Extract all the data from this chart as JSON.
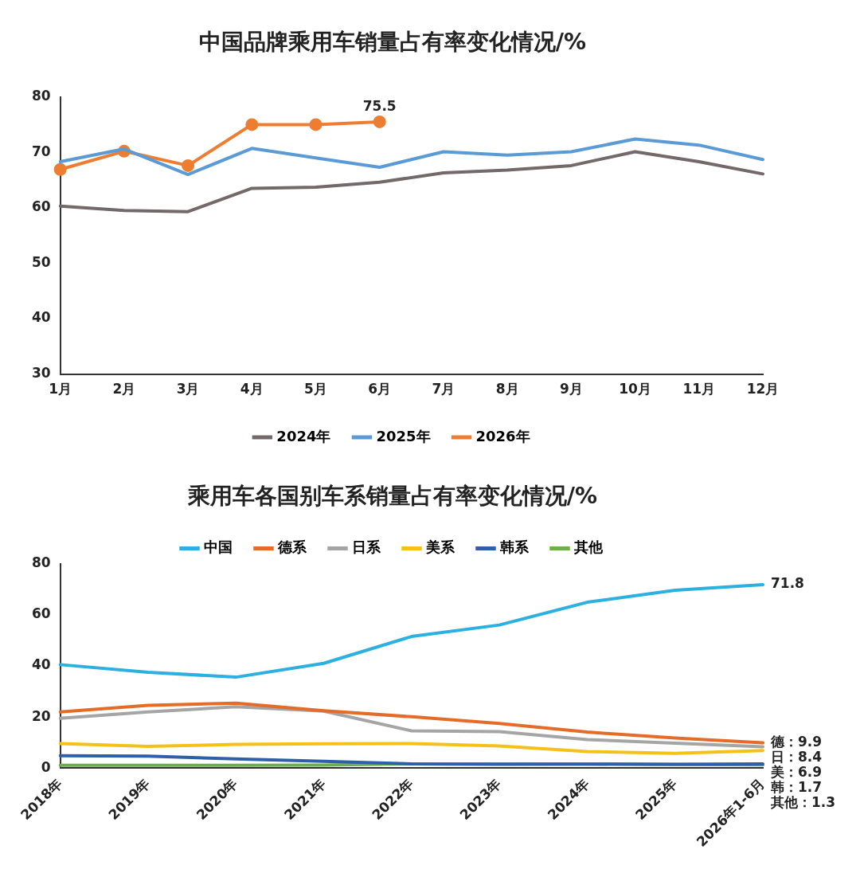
{
  "chart_data": [
    {
      "type": "line",
      "title": "中国品牌乘用车销量占有率变化情况/%",
      "categories": [
        "1月",
        "2月",
        "3月",
        "4月",
        "5月",
        "6月",
        "7月",
        "8月",
        "9月",
        "10月",
        "11月",
        "12月"
      ],
      "ylim": [
        30,
        80
      ],
      "yticks": [
        30,
        40,
        50,
        60,
        70,
        80
      ],
      "legend": "bottom",
      "marker": "none",
      "series": [
        {
          "name": "2024年",
          "color": "#73686a",
          "values": [
            60.3,
            59.5,
            59.3,
            63.5,
            63.7,
            64.6,
            66.3,
            66.8,
            67.6,
            70.1,
            68.3,
            66.1
          ]
        },
        {
          "name": "2025年",
          "color": "#5b9bd5",
          "values": [
            68.3,
            70.6,
            66.0,
            70.7,
            69.0,
            67.3,
            70.1,
            69.5,
            70.1,
            72.4,
            71.3,
            68.7
          ]
        },
        {
          "name": "2026年",
          "color": "#ed7d31",
          "marker": "circle",
          "values": [
            66.9,
            70.2,
            67.6,
            75.0,
            75.0,
            75.5,
            null,
            null,
            null,
            null,
            null,
            null
          ],
          "value_labels": [
            null,
            null,
            null,
            null,
            null,
            "75.5",
            null,
            null,
            null,
            null,
            null,
            null
          ]
        }
      ]
    },
    {
      "type": "line",
      "title": "乘用车各国别车系销量占有率变化情况/%",
      "categories": [
        "2018年",
        "2019年",
        "2020年",
        "2021年",
        "2022年",
        "2023年",
        "2024年",
        "2025年",
        "2026年1-6月"
      ],
      "ylim": [
        0,
        80
      ],
      "yticks": [
        0,
        20,
        40,
        60,
        80
      ],
      "legend": "top",
      "marker": "none",
      "series": [
        {
          "name": "中国",
          "color": "#2bb0e0",
          "values": [
            40.5,
            37.5,
            35.6,
            41.0,
            51.5,
            56.0,
            64.9,
            69.6,
            71.8
          ],
          "value_labels": [
            null,
            null,
            null,
            null,
            null,
            null,
            null,
            null,
            "71.8"
          ]
        },
        {
          "name": "德系",
          "color": "#e46c28",
          "values": [
            22.0,
            24.6,
            25.4,
            22.5,
            20.1,
            17.5,
            14.1,
            11.8,
            9.9
          ],
          "value_labels": [
            null,
            null,
            null,
            null,
            null,
            null,
            null,
            null,
            "德：9.9"
          ]
        },
        {
          "name": "日系",
          "color": "#a5a5a5",
          "values": [
            19.5,
            22.0,
            24.0,
            22.3,
            14.6,
            14.3,
            11.2,
            9.8,
            8.4
          ],
          "value_labels": [
            null,
            null,
            null,
            null,
            null,
            null,
            null,
            null,
            "日：8.4"
          ]
        },
        {
          "name": "美系",
          "color": "#f5c118",
          "values": [
            9.6,
            8.5,
            9.3,
            9.5,
            9.6,
            8.7,
            6.5,
            5.8,
            6.9
          ],
          "value_labels": [
            null,
            null,
            null,
            null,
            null,
            null,
            null,
            null,
            "美：6.9"
          ]
        },
        {
          "name": "韩系",
          "color": "#2f5fa8",
          "values": [
            4.9,
            4.7,
            3.6,
            2.7,
            1.7,
            1.6,
            1.6,
            1.5,
            1.7
          ],
          "value_labels": [
            null,
            null,
            null,
            null,
            null,
            null,
            null,
            null,
            "韩：1.7"
          ]
        },
        {
          "name": "其他",
          "color": "#6ab04c",
          "values": [
            1.1,
            1.1,
            1.1,
            1.2,
            1.7,
            1.5,
            1.6,
            1.4,
            1.3
          ],
          "value_labels": [
            null,
            null,
            null,
            null,
            null,
            null,
            null,
            null,
            "其他：1.3"
          ]
        }
      ]
    }
  ]
}
